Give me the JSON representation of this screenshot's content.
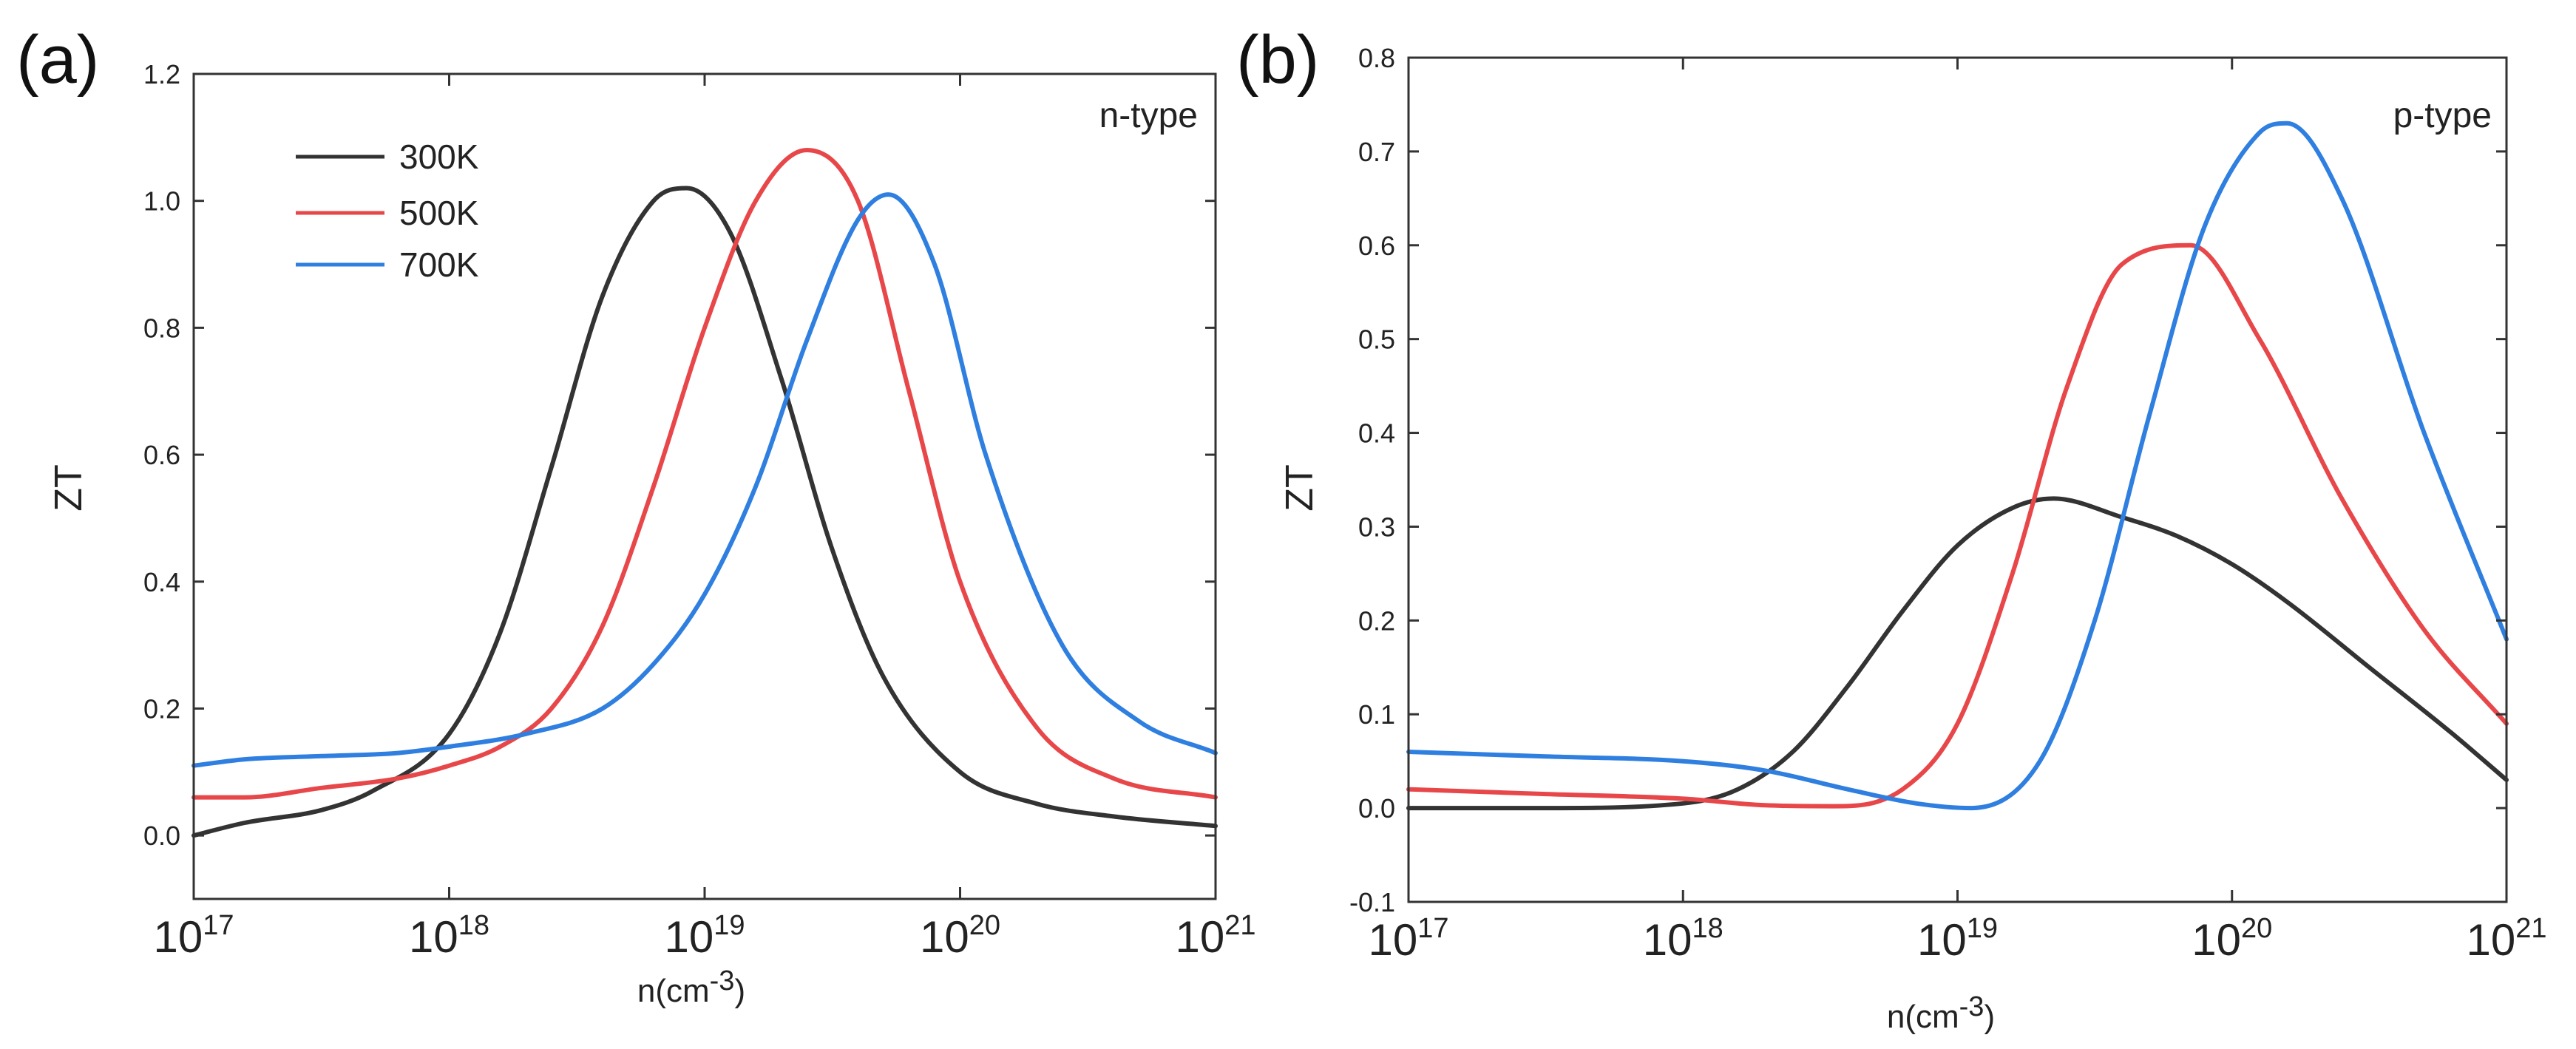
{
  "chart_data": [
    {
      "type": "line",
      "panel_label": "(a)",
      "annotation": "n-type",
      "xlabel": "n(cm",
      "xlabel_sup": "-3",
      "xlabel_close": ")",
      "ylabel": "ZT",
      "xscale": "log",
      "xlim_exp": [
        17,
        21
      ],
      "ylim": [
        -0.1,
        1.2
      ],
      "yticks": [
        "0.0",
        "0.2",
        "0.4",
        "0.6",
        "0.8",
        "1.0",
        "1.2"
      ],
      "xtick_base": "10",
      "xtick_exponents": [
        "17",
        "18",
        "19",
        "20",
        "21"
      ],
      "legend_position": "top-left",
      "series": [
        {
          "name": "300K",
          "color": "#333333",
          "x_log": [
            17.0,
            17.2,
            17.5,
            17.7,
            18.0,
            18.2,
            18.4,
            18.6,
            18.8,
            18.93,
            19.1,
            19.3,
            19.5,
            19.7,
            20.0,
            20.3,
            20.6,
            21.0
          ],
          "y": [
            0.0,
            0.02,
            0.04,
            0.07,
            0.16,
            0.32,
            0.58,
            0.85,
            1.0,
            1.02,
            0.95,
            0.72,
            0.45,
            0.25,
            0.1,
            0.05,
            0.03,
            0.015
          ]
        },
        {
          "name": "500K",
          "color": "#e8474a",
          "x_log": [
            17.0,
            17.2,
            17.5,
            17.8,
            18.0,
            18.2,
            18.4,
            18.6,
            18.8,
            19.0,
            19.2,
            19.4,
            19.6,
            19.8,
            20.0,
            20.3,
            20.6,
            21.0
          ],
          "y": [
            0.06,
            0.06,
            0.075,
            0.09,
            0.11,
            0.14,
            0.2,
            0.33,
            0.55,
            0.8,
            1.0,
            1.08,
            1.0,
            0.7,
            0.4,
            0.17,
            0.09,
            0.06
          ]
        },
        {
          "name": "700K",
          "color": "#2f7fe0",
          "x_log": [
            17.0,
            17.2,
            17.5,
            17.8,
            18.0,
            18.3,
            18.6,
            18.8,
            19.0,
            19.2,
            19.4,
            19.6,
            19.72,
            19.9,
            20.1,
            20.4,
            20.7,
            21.0
          ],
          "y": [
            0.11,
            0.12,
            0.125,
            0.13,
            0.14,
            0.16,
            0.2,
            0.27,
            0.38,
            0.55,
            0.78,
            0.97,
            1.01,
            0.9,
            0.6,
            0.3,
            0.18,
            0.13
          ]
        }
      ]
    },
    {
      "type": "line",
      "panel_label": "(b)",
      "annotation": "p-type",
      "xlabel": "n(cm",
      "xlabel_sup": "-3",
      "xlabel_close": ")",
      "ylabel": "ZT",
      "xscale": "log",
      "xlim_exp": [
        17,
        21
      ],
      "ylim": [
        -0.1,
        0.8
      ],
      "yticks": [
        "-0.1",
        "0.0",
        "0.1",
        "0.2",
        "0.3",
        "0.4",
        "0.5",
        "0.6",
        "0.7",
        "0.8"
      ],
      "xtick_base": "10",
      "xtick_exponents": [
        "17",
        "18",
        "19",
        "20",
        "21"
      ],
      "series": [
        {
          "name": "300K",
          "color": "#333333",
          "x_log": [
            17.0,
            17.5,
            18.0,
            18.2,
            18.4,
            18.6,
            18.8,
            19.0,
            19.2,
            19.35,
            19.6,
            19.8,
            20.0,
            20.2,
            20.5,
            20.8,
            21.0
          ],
          "y": [
            0.0,
            0.0,
            0.005,
            0.02,
            0.06,
            0.13,
            0.21,
            0.28,
            0.32,
            0.33,
            0.31,
            0.29,
            0.26,
            0.22,
            0.15,
            0.08,
            0.03
          ]
        },
        {
          "name": "500K",
          "color": "#e8474a",
          "x_log": [
            17.0,
            17.5,
            18.0,
            18.3,
            18.55,
            18.8,
            19.0,
            19.2,
            19.4,
            19.6,
            19.85,
            20.1,
            20.4,
            20.7,
            21.0
          ],
          "y": [
            0.02,
            0.015,
            0.01,
            0.003,
            0.002,
            0.02,
            0.09,
            0.25,
            0.45,
            0.58,
            0.6,
            0.5,
            0.33,
            0.19,
            0.09
          ]
        },
        {
          "name": "700K",
          "color": "#2f7fe0",
          "x_log": [
            17.0,
            17.5,
            18.0,
            18.3,
            18.6,
            18.85,
            19.05,
            19.3,
            19.5,
            19.7,
            19.9,
            20.1,
            20.2,
            20.4,
            20.7,
            21.0
          ],
          "y": [
            0.06,
            0.055,
            0.05,
            0.04,
            0.02,
            0.005,
            0.0,
            0.05,
            0.2,
            0.42,
            0.62,
            0.72,
            0.73,
            0.65,
            0.4,
            0.18
          ]
        }
      ]
    }
  ]
}
